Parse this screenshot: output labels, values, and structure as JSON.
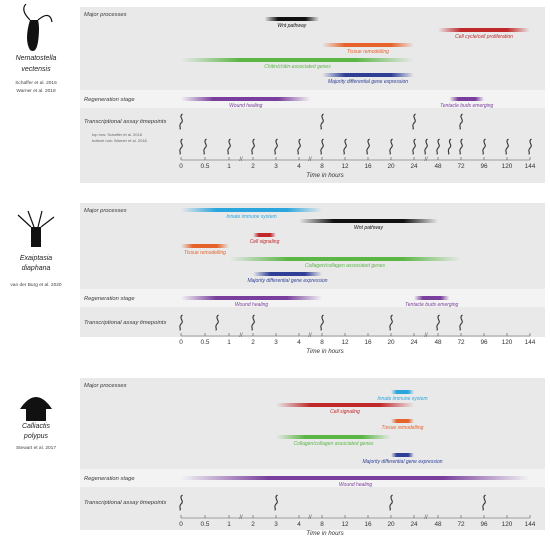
{
  "tick_labels": [
    "0",
    "0.5",
    "1",
    "2",
    "3",
    "4",
    "8",
    "12",
    "16",
    "20",
    "24",
    "48",
    "72",
    "96",
    "120",
    "144"
  ],
  "axis_label": "Time in hours",
  "colors": {
    "wnt": "#111111",
    "cellcycle": "#c0282a",
    "tissue": "#e5632a",
    "chitin": "#5cb646",
    "diffexp": "#2f3f96",
    "wound": "#7a3f9c",
    "tentacle": "#7a3f9c",
    "immune": "#2aa6dd",
    "signaling": "#c0282a",
    "panel_bg": "#e9e9ea",
    "panel_stripe": "#f3f3f4",
    "label": "#3a3a3a"
  },
  "panels": [
    {
      "species": [
        "Nematostella",
        "vectensis"
      ],
      "refs": [
        "Schaffer et al. 2016",
        "Warner et al. 2018"
      ],
      "sections": {
        "processes": "Major processes",
        "regeneration": "Regeneration stage",
        "timepoints": "Transcriptional assay timepoints"
      },
      "processes": [
        {
          "label": "Wnt pathway",
          "color": "wnt",
          "start": 2.5,
          "end": 7.5
        },
        {
          "label": "Cell cycle/cell proliferation",
          "color": "cellcycle",
          "start": 48,
          "end": 144
        },
        {
          "label": "Tissue remodelling",
          "color": "tissue",
          "start": 8,
          "end": 24
        },
        {
          "label": "Chitin/chitin-associated genes",
          "color": "chitin",
          "start": 0,
          "end": 24
        },
        {
          "label": "Majority differential gene expression",
          "color": "diffexp",
          "start": 8,
          "end": 24
        }
      ],
      "regeneration": [
        {
          "label": "Wound healing",
          "color": "wound",
          "start": 0,
          "end": 6
        },
        {
          "label": "Tentacle buds emerging",
          "color": "tentacle",
          "start": 60,
          "end": 96
        }
      ],
      "timepoint_notes": [
        "top row: Schaffer et al. 2016",
        "bottom row: Warner et al. 2018"
      ],
      "timepoints_top": [
        0,
        8,
        24,
        72
      ],
      "timepoints_bottom": [
        0,
        0.5,
        1,
        2,
        3,
        4,
        8,
        12,
        16,
        20,
        24,
        36,
        48,
        60,
        72,
        96,
        120,
        144
      ]
    },
    {
      "species": [
        "Exaiptasia",
        "diaphana"
      ],
      "refs": [
        "van der Burg et al. 2020"
      ],
      "sections": {
        "processes": "Major processes",
        "regeneration": "Regeneration stage",
        "timepoints": "Transcriptional assay timepoints"
      },
      "processes": [
        {
          "label": "Innate immune system",
          "color": "immune",
          "start": 0,
          "end": 8
        },
        {
          "label": "Wnt pathway",
          "color": "wnt",
          "start": 4,
          "end": 48
        },
        {
          "label": "Cell signaling",
          "color": "signaling",
          "start": 2,
          "end": 3
        },
        {
          "label": "Tissue remodelling",
          "color": "tissue",
          "start": 0,
          "end": 1
        },
        {
          "label": "Collagen/collagen associated genes",
          "color": "chitin",
          "start": 1,
          "end": 72
        },
        {
          "label": "Majority differential gene expression",
          "color": "diffexp",
          "start": 2,
          "end": 8
        }
      ],
      "regeneration": [
        {
          "label": "Wound healing",
          "color": "wound",
          "start": 0,
          "end": 8
        },
        {
          "label": "Tentacle buds emerging",
          "color": "tentacle",
          "start": 24,
          "end": 60
        }
      ],
      "timepoint_notes": [],
      "timepoints_top": [
        0,
        0.75,
        2,
        8,
        20,
        48,
        72
      ],
      "timepoints_bottom": []
    },
    {
      "species": [
        "Calliactis",
        "polypus"
      ],
      "refs": [
        "Stewart et al. 2017"
      ],
      "sections": {
        "processes": "Major processes",
        "regeneration": "Regeneration stage",
        "timepoints": "Transcriptional assay timepoints"
      },
      "processes": [
        {
          "label": "Innate immune system",
          "color": "immune",
          "start": 20,
          "end": 24
        },
        {
          "label": "Cell signaling",
          "color": "signaling",
          "start": 3,
          "end": 24
        },
        {
          "label": "Tissue remodelling",
          "color": "tissue",
          "start": 20,
          "end": 24
        },
        {
          "label": "Collagen/collagen associated genes",
          "color": "chitin",
          "start": 3,
          "end": 20
        },
        {
          "label": "Majority differential gene expression",
          "color": "diffexp",
          "start": 20,
          "end": 24
        }
      ],
      "regeneration": [
        {
          "label": "Wound healing",
          "color": "wound",
          "start": 0,
          "end": 144
        }
      ],
      "timepoint_notes": [],
      "timepoints_top": [
        0,
        3,
        20,
        96
      ],
      "timepoints_bottom": []
    }
  ]
}
